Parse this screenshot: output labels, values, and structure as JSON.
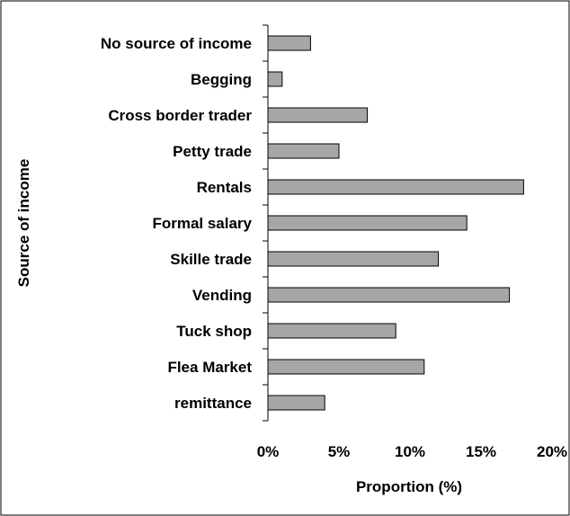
{
  "chart_data": {
    "type": "bar",
    "orientation": "horizontal",
    "categories": [
      "No source of income",
      "Begging",
      "Cross border trader",
      "Petty trade",
      "Rentals",
      "Formal salary",
      "Skille trade",
      "Vending",
      "Tuck shop",
      "Flea Market",
      "remittance"
    ],
    "values": [
      3,
      1,
      7,
      5,
      18,
      14,
      12,
      17,
      9,
      11,
      4
    ],
    "xlabel": "Proportion (%)",
    "ylabel": "Source of income",
    "xlim": [
      0,
      20
    ],
    "x_ticks": [
      0,
      5,
      10,
      15,
      20
    ],
    "x_tick_labels": [
      "0%",
      "5%",
      "10%",
      "15%",
      "20%"
    ],
    "grid": false,
    "legend": "none",
    "bar_color": "#a6a6a6",
    "bar_edge_color": "#000000"
  }
}
